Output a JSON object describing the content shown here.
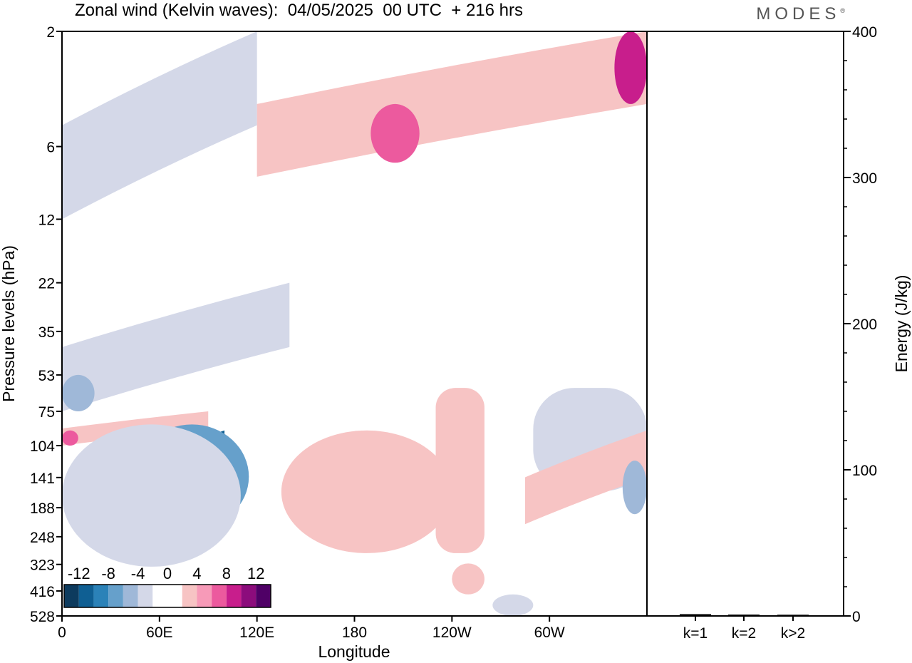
{
  "title": "Zonal wind (Kelvin waves):  04/05/2025  00 UTC  + 216 hrs",
  "brand": "MODES",
  "brand_mark": "®",
  "chart_data": [
    {
      "type": "heatmap",
      "title": "Zonal wind (Kelvin waves):  04/05/2025  00 UTC  + 216 hrs",
      "xlabel": "Longitude",
      "ylabel": "Pressure levels (hPa)",
      "x_ticks": [
        "0",
        "60E",
        "120E",
        "180",
        "120W",
        "60W"
      ],
      "x_tick_degrees": [
        0,
        60,
        120,
        180,
        240,
        300
      ],
      "xlim": [
        0,
        360
      ],
      "y_ticks": [
        "2",
        "6",
        "12",
        "22",
        "35",
        "53",
        "75",
        "104",
        "141",
        "188",
        "248",
        "323",
        "416",
        "528"
      ],
      "y_scale": "log",
      "y_inverted": true,
      "colorbar": {
        "labels": [
          "-12",
          "-8",
          "-4",
          "0",
          "4",
          "8",
          "12"
        ],
        "levels": [
          -14,
          -12,
          -10,
          -8,
          -6,
          -4,
          -2,
          0,
          2,
          4,
          6,
          8,
          10,
          12,
          14
        ],
        "colors": [
          "#0d3b5e",
          "#0f5f93",
          "#2b82b8",
          "#66a0cb",
          "#9fb8d8",
          "#d4d8e8",
          "#ffffff",
          "#ffffff",
          "#f7c4c4",
          "#f79ab8",
          "#ec5a9e",
          "#c81e8c",
          "#8c0c7c",
          "#4f0066"
        ],
        "placement": "bottom-left"
      },
      "features": [
        {
          "lon": [
            0,
            120
          ],
          "level": [
            2,
            12
          ],
          "value": -3,
          "shape": "tilted band"
        },
        {
          "lon": [
            0,
            140
          ],
          "level": [
            22,
            75
          ],
          "value": -3,
          "shape": "tilted band"
        },
        {
          "lon": [
            0,
            20
          ],
          "level": [
            53,
            75
          ],
          "value": -6,
          "shape": "blob"
        },
        {
          "lon": [
            0,
            90
          ],
          "level": [
            75,
            104
          ],
          "value": 3,
          "shape": "tilted band"
        },
        {
          "lon": [
            0,
            10
          ],
          "level": [
            90,
            104
          ],
          "value": 6,
          "shape": "blob"
        },
        {
          "lon": [
            60,
            100
          ],
          "level": [
            90,
            141
          ],
          "value": -11,
          "shape": "tilted core"
        },
        {
          "lon": [
            45,
            115
          ],
          "level": [
            85,
            230
          ],
          "value": -7,
          "shape": "blob"
        },
        {
          "lon": [
            0,
            110
          ],
          "level": [
            85,
            330
          ],
          "value": -3,
          "shape": "blob"
        },
        {
          "lon": [
            135,
            240
          ],
          "level": [
            90,
            290
          ],
          "value": 3,
          "shape": "blob"
        },
        {
          "lon": [
            230,
            260
          ],
          "level": [
            60,
            290
          ],
          "value": 3,
          "shape": "column"
        },
        {
          "lon": [
            120,
            360
          ],
          "level": [
            2,
            8
          ],
          "value": 3,
          "shape": "tilted band"
        },
        {
          "lon": [
            190,
            220
          ],
          "level": [
            4,
            7
          ],
          "value": 6,
          "shape": "blob"
        },
        {
          "lon": [
            340,
            360
          ],
          "level": [
            2,
            4
          ],
          "value": 8,
          "shape": "blob"
        },
        {
          "lon": [
            330,
            360
          ],
          "level": [
            75,
            110
          ],
          "value": -6,
          "shape": "blob"
        },
        {
          "lon": [
            290,
            360
          ],
          "level": [
            60,
            160
          ],
          "value": -3,
          "shape": "band"
        },
        {
          "lon": [
            285,
            360
          ],
          "level": [
            90,
            220
          ],
          "value": 3,
          "shape": "tilted band"
        },
        {
          "lon": [
            345,
            360
          ],
          "level": [
            120,
            200
          ],
          "value": -6,
          "shape": "blob"
        },
        {
          "lon": [
            240,
            260
          ],
          "level": [
            320,
            430
          ],
          "value": 3,
          "shape": "blob"
        },
        {
          "lon": [
            265,
            290
          ],
          "level": [
            430,
            528
          ],
          "value": -3,
          "shape": "blob"
        }
      ]
    },
    {
      "type": "bar",
      "categories": [
        "k=1",
        "k=2",
        "k>2"
      ],
      "values": [
        0.5,
        0.2,
        0.1
      ],
      "ylabel": "Energy (J/kg)",
      "ylim": [
        0,
        400
      ],
      "y_ticks": [
        "0",
        "100",
        "200",
        "300",
        "400"
      ],
      "axis_side": "right"
    }
  ]
}
